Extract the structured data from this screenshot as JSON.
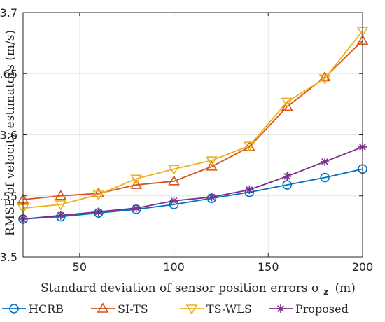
{
  "chart_data": {
    "type": "line",
    "xlabel": "Standard deviation of sensor position errors σ",
    "xlabel_sub": "z",
    "xlabel_unit": "(m)",
    "ylabel": "RMSE of velocity estimators (m/s)",
    "xlim": [
      20,
      200
    ],
    "ylim": [
      3.5,
      3.7
    ],
    "xticks": [
      50,
      100,
      150,
      200
    ],
    "yticks": [
      3.5,
      3.55,
      3.6,
      3.65,
      3.7
    ],
    "xtick_labels": [
      "50",
      "100",
      "150",
      "200"
    ],
    "ytick_labels": [
      "3.5",
      "3.55",
      "3.6",
      "3.65",
      "3.7"
    ],
    "grid": true,
    "legend_position": "bottom",
    "x": [
      20,
      40,
      60,
      80,
      100,
      120,
      140,
      160,
      180,
      200
    ],
    "series": [
      {
        "name": "HCRB",
        "color": "#0072BD",
        "marker": "circle",
        "values": [
          3.531,
          3.533,
          3.536,
          3.539,
          3.543,
          3.548,
          3.553,
          3.559,
          3.565,
          3.572
        ]
      },
      {
        "name": "SI-TS",
        "color": "#D95319",
        "marker": "triangle-up",
        "values": [
          3.547,
          3.55,
          3.552,
          3.559,
          3.562,
          3.574,
          3.59,
          3.623,
          3.647,
          3.677
        ]
      },
      {
        "name": "TS-WLS",
        "color": "#EDB120",
        "marker": "triangle-down",
        "values": [
          3.54,
          3.543,
          3.551,
          3.564,
          3.572,
          3.579,
          3.591,
          3.627,
          3.646,
          3.685
        ]
      },
      {
        "name": "Proposed",
        "color": "#7E2F8E",
        "marker": "asterisk",
        "values": [
          3.531,
          3.534,
          3.537,
          3.54,
          3.546,
          3.549,
          3.555,
          3.566,
          3.578,
          3.59
        ]
      }
    ]
  }
}
